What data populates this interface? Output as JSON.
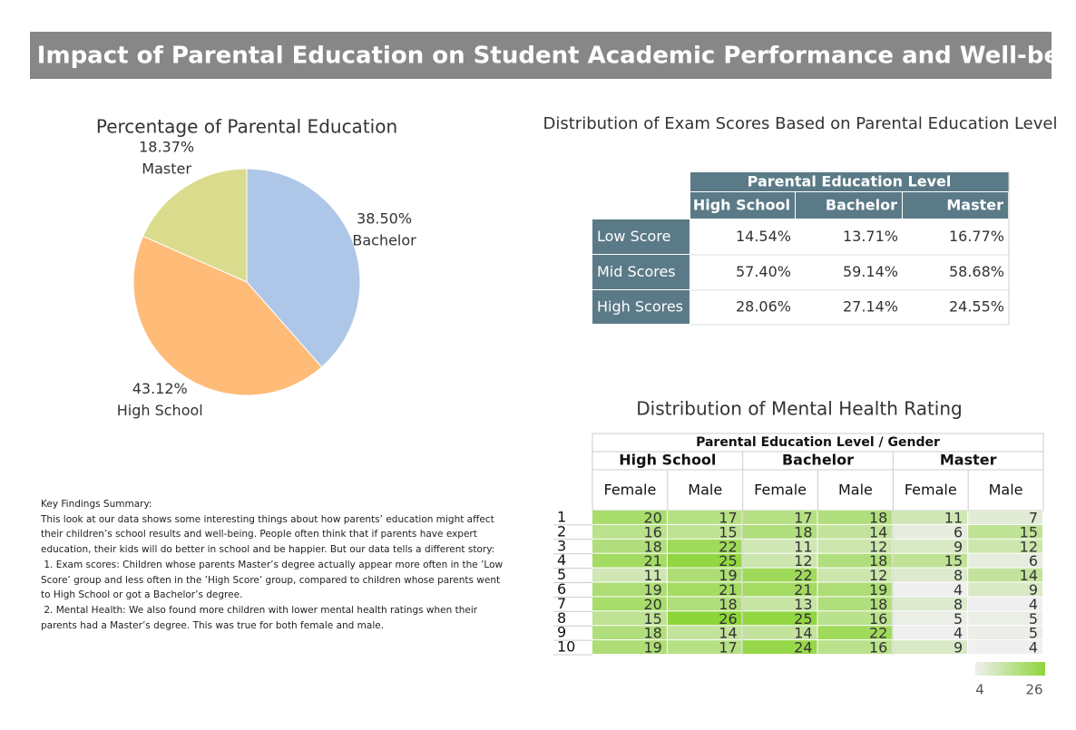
{
  "title": "The Impact of Parental Education on Student Academic Performance and Well-being",
  "notes": {
    "title": "Key Findings Summary:",
    "paragraphs": [
      "This look at our data shows some interesting things about how parents’ education might affect their children’s school results and well-being. People often think that if parents have expert education, their kids will do better in school and be happier. But our data tells a different story:",
      " 1. Exam scores: Children whose parents Master’s degree actually appear more often in the ’Low Score’ group and less often in the ’High Score’ group, compared to children whose parents went to High School or got a Bachelor’s degree.",
      " 2. Mental Health: We also found more children with lower mental health ratings when their parents had a Master’s degree. This was true for both female and male."
    ]
  },
  "chart_data": [
    {
      "type": "pie",
      "title": "Percentage of Parental Education",
      "categories": [
        "Bachelor",
        "High School",
        "Master"
      ],
      "values": [
        38.5,
        43.12,
        18.37
      ],
      "value_labels": [
        "38.50%",
        "43.12%",
        "18.37%"
      ],
      "colors": [
        "#aec7e8",
        "#ffbb78",
        "#dbdb8d"
      ]
    },
    {
      "type": "table",
      "title": "Distribution of Exam Scores Based on Parental Education Level",
      "header": "Parental Education Level",
      "columns": [
        "High School",
        "Bachelor",
        "Master"
      ],
      "rows": [
        "Low Score",
        "Mid Scores",
        "High Scores"
      ],
      "values": [
        [
          14.54,
          13.71,
          16.77
        ],
        [
          57.4,
          59.14,
          58.68
        ],
        [
          28.06,
          27.14,
          24.55
        ]
      ],
      "value_labels": [
        [
          "14.54%",
          "13.71%",
          "16.77%"
        ],
        [
          "57.40%",
          "59.14%",
          "58.68%"
        ],
        [
          "28.06%",
          "27.14%",
          "24.55%"
        ]
      ]
    },
    {
      "type": "heatmap",
      "title": "Distribution of Mental Health Rating",
      "header": "Parental Education Level  /  Gender",
      "groups": [
        {
          "name": "High School",
          "columns": [
            "Female",
            "Male"
          ]
        },
        {
          "name": "Bachelor",
          "columns": [
            "Female",
            "Male"
          ]
        },
        {
          "name": "Master",
          "columns": [
            "Female",
            "Male"
          ]
        }
      ],
      "rows": [
        1,
        2,
        3,
        4,
        5,
        6,
        7,
        8,
        9,
        10
      ],
      "values": [
        [
          20,
          17,
          17,
          18,
          11,
          7
        ],
        [
          16,
          15,
          18,
          14,
          6,
          15
        ],
        [
          18,
          22,
          11,
          12,
          9,
          12
        ],
        [
          21,
          25,
          12,
          18,
          15,
          6
        ],
        [
          11,
          19,
          22,
          12,
          8,
          14
        ],
        [
          19,
          21,
          21,
          19,
          4,
          9
        ],
        [
          20,
          18,
          13,
          18,
          8,
          4
        ],
        [
          15,
          26,
          25,
          16,
          5,
          5
        ],
        [
          18,
          14,
          14,
          22,
          4,
          5
        ],
        [
          19,
          17,
          24,
          16,
          9,
          4
        ]
      ],
      "colorscale": {
        "range": [
          4,
          26
        ],
        "colors": [
          "#efefef",
          "#8ed53a"
        ]
      }
    }
  ]
}
